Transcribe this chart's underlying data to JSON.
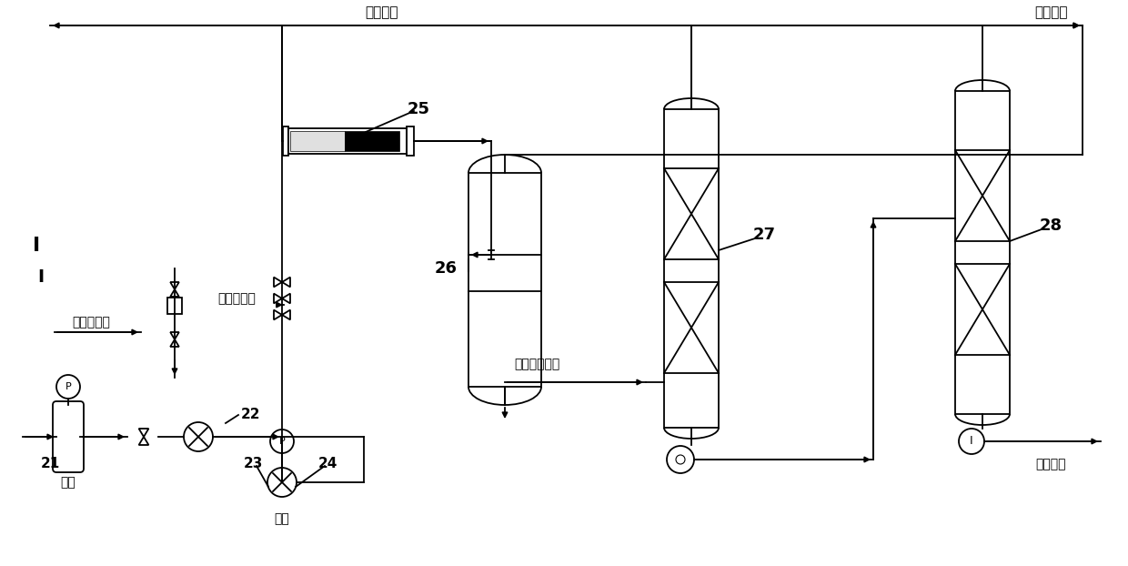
{
  "bg_color": "#ffffff",
  "line_color": "#000000",
  "labels": {
    "xunhuan": "循环烷烃",
    "buchu_ditan": "补充低碳烃",
    "buchu_cuihua": "补充催化剂",
    "fei_cuihua": "废催化剂排出",
    "zhengou": "正构烷烃",
    "wanjihualv": "烷基化油",
    "qingxiang": "轻相",
    "zhongxiang": "重相",
    "n21": "21",
    "n22": "22",
    "n23": "23",
    "n24": "24",
    "n25": "25",
    "n26": "26",
    "n27": "27",
    "n28": "28"
  }
}
